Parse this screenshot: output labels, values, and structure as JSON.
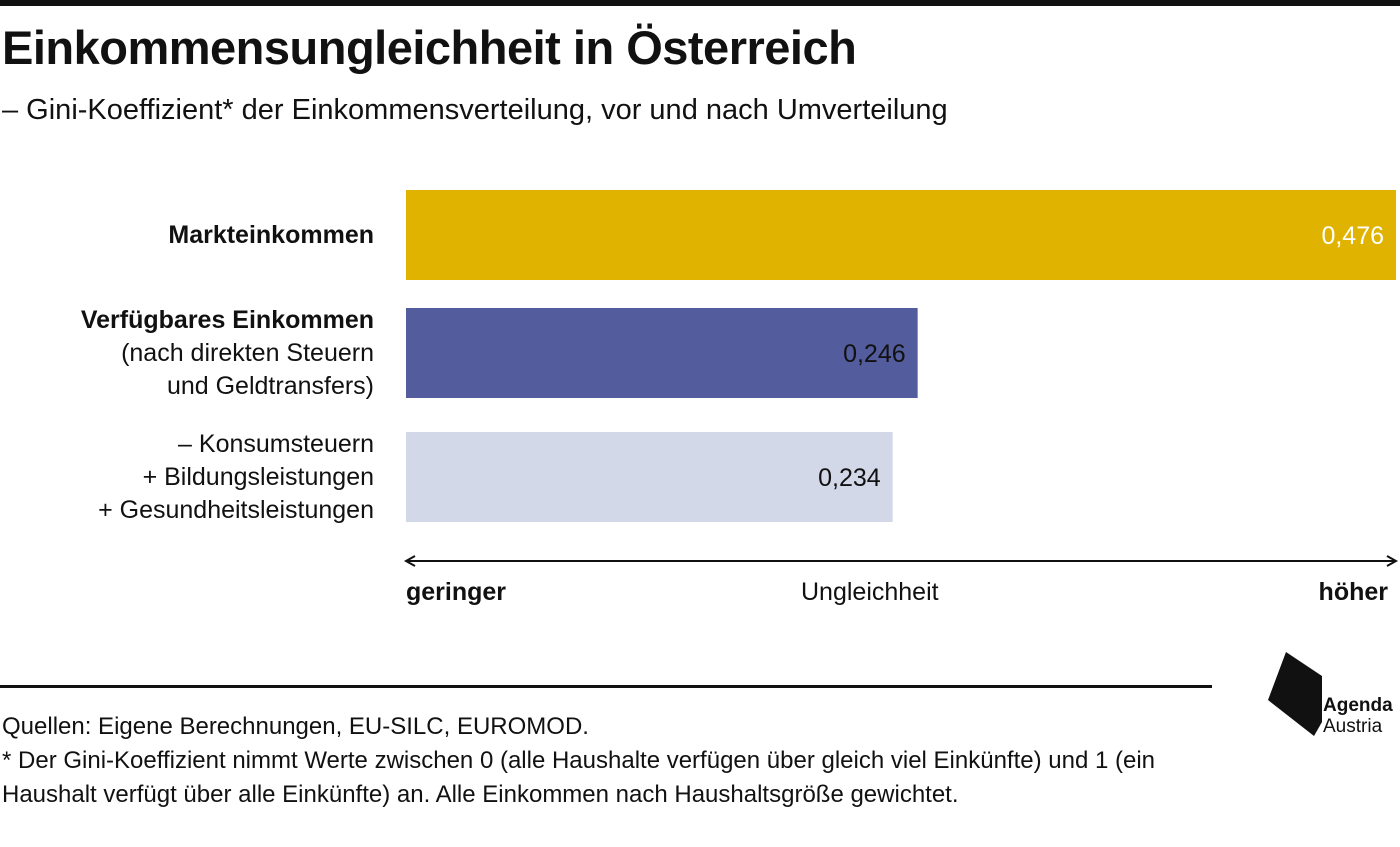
{
  "title": "Einkommensungleichheit in Österreich",
  "subtitle": "– Gini-Koeffizient* der Einkommensverteilung, vor und nach Umverteilung",
  "chart_data": {
    "type": "bar",
    "orientation": "horizontal",
    "categories": [
      {
        "lines": [
          "Markteinkommen"
        ],
        "bold_lines": 1
      },
      {
        "lines": [
          "Verfügbares Einkommen",
          "(nach direkten Steuern",
          "und Geldtransfers)"
        ],
        "bold_lines": 1
      },
      {
        "lines": [
          "– Konsumsteuern",
          "+ Bildungsleistungen",
          "+ Gesundheitsleistungen"
        ],
        "bold_lines": 0
      }
    ],
    "values": [
      0.476,
      0.246,
      0.234
    ],
    "value_labels": [
      "0,476",
      "0,246",
      "0,234"
    ],
    "colors": [
      "#e0b300",
      "#535c9c",
      "#d3d8e8"
    ],
    "label_colors": [
      "#ffffff",
      "#111111",
      "#111111"
    ],
    "xlim": [
      0,
      0.476
    ],
    "axis_arrow": {
      "left": "geringer",
      "middle": "Ungleichheit",
      "right": "höher"
    },
    "grid": false,
    "legend": "none"
  },
  "footer": {
    "sources": "Quellen: Eigene Berechnungen, EU-SILC, EUROMOD.",
    "note": "* Der Gini-Koeffizient nimmt Werte zwischen 0 (alle Haushalte verfügen über gleich viel Einkünfte) und 1 (ein Haushalt verfügt über alle Einkünfte) an. Alle Einkommen nach Haushaltsgröße gewichtet."
  },
  "logo": {
    "line1": "Agenda",
    "line2": "Austria",
    "icon": "agenda-austria-logo-icon"
  }
}
